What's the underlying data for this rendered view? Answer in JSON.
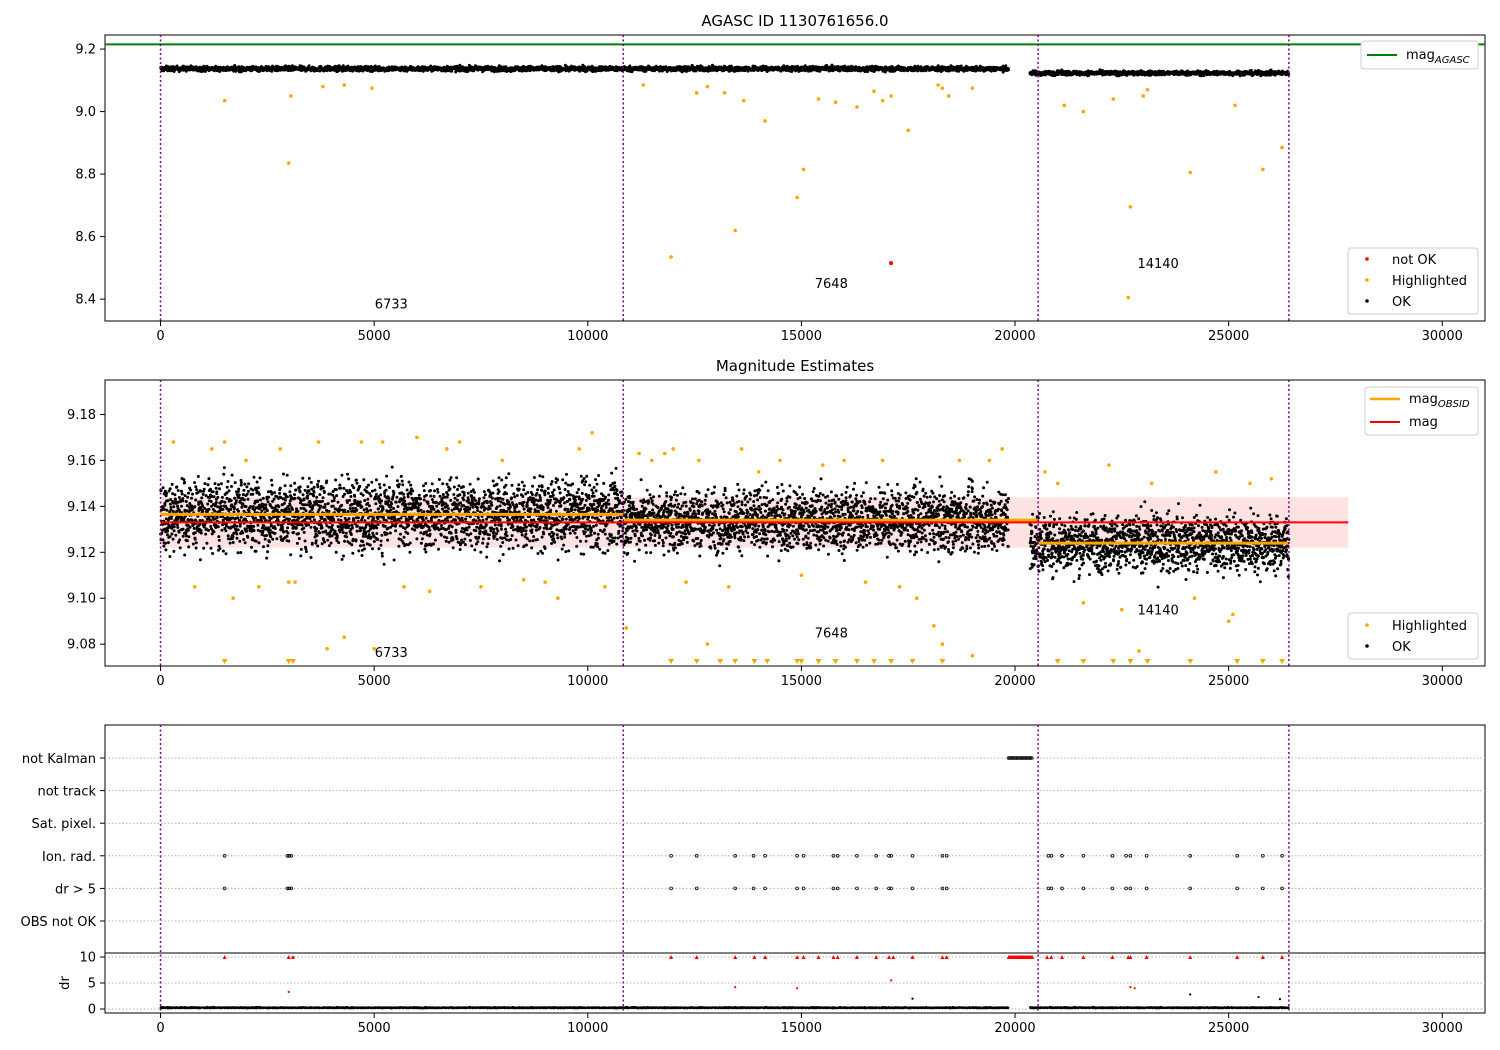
{
  "chart_data": [
    {
      "type": "scatter",
      "title": "AGASC ID 1130761656.0",
      "xlim": [
        -1300,
        31000
      ],
      "ylim": [
        8.33,
        9.245
      ],
      "xticks": [
        0,
        5000,
        10000,
        15000,
        20000,
        25000,
        30000
      ],
      "yticks": [
        8.4,
        8.6,
        8.8,
        9.0,
        9.2
      ],
      "ytick_labels": [
        "8.4",
        "8.6",
        "8.8",
        "9.0",
        "9.2"
      ],
      "obsid_boundaries": [
        0,
        10830,
        20540,
        26410
      ],
      "obsid_labels": [
        {
          "text": "6733",
          "x": 5400,
          "y": 8.37
        },
        {
          "text": "7648",
          "x": 15700,
          "y": 8.435
        },
        {
          "text": "14140",
          "x": 23350,
          "y": 8.5
        }
      ],
      "reference_lines": [
        {
          "name": "mag_AGASC",
          "y": 9.215,
          "x_range": [
            -1300,
            31000
          ],
          "color": "#008000"
        }
      ],
      "series": [
        {
          "name": "not OK",
          "color": "#ff0000",
          "points": [
            [
              17100,
              8.515
            ]
          ]
        },
        {
          "name": "Highlighted",
          "color": "#ffa500",
          "points": [
            [
              1500,
              9.035
            ],
            [
              3000,
              8.835
            ],
            [
              3050,
              9.05
            ],
            [
              3800,
              9.08
            ],
            [
              4300,
              9.085
            ],
            [
              4950,
              9.075
            ],
            [
              11300,
              9.085
            ],
            [
              11950,
              8.535
            ],
            [
              12550,
              9.06
            ],
            [
              12800,
              9.08
            ],
            [
              13200,
              9.06
            ],
            [
              13450,
              8.62
            ],
            [
              13650,
              9.035
            ],
            [
              14150,
              8.97
            ],
            [
              14900,
              8.725
            ],
            [
              15050,
              8.815
            ],
            [
              15400,
              9.04
            ],
            [
              15800,
              9.03
            ],
            [
              16300,
              9.015
            ],
            [
              16700,
              9.065
            ],
            [
              16900,
              9.035
            ],
            [
              17100,
              9.05
            ],
            [
              17500,
              8.94
            ],
            [
              18200,
              9.085
            ],
            [
              18300,
              9.075
            ],
            [
              18450,
              9.05
            ],
            [
              19000,
              9.075
            ],
            [
              21150,
              9.02
            ],
            [
              21600,
              9.0
            ],
            [
              22300,
              9.04
            ],
            [
              22650,
              8.405
            ],
            [
              22700,
              8.695
            ],
            [
              23000,
              9.05
            ],
            [
              23100,
              9.07
            ],
            [
              24100,
              8.805
            ],
            [
              25150,
              9.02
            ],
            [
              25800,
              8.815
            ],
            [
              26250,
              8.885
            ]
          ]
        },
        {
          "name": "OK",
          "color": "#000000",
          "bands": [
            {
              "x_range": [
                0,
                19850
              ],
              "center": 9.137,
              "half_width": 0.028
            },
            {
              "x_range": [
                20350,
                26410
              ],
              "center": 9.123,
              "half_width": 0.025
            }
          ]
        }
      ],
      "legends": [
        {
          "placement": "upper-right",
          "entries": [
            {
              "label": "mag",
              "sub": "AGASC",
              "marker": "line",
              "color": "#008000"
            }
          ]
        },
        {
          "placement": "lower-right",
          "entries": [
            {
              "label": "not OK",
              "marker": "dot",
              "color": "#ff0000"
            },
            {
              "label": "Highlighted",
              "marker": "dot",
              "color": "#ffa500"
            },
            {
              "label": "OK",
              "marker": "dot",
              "color": "#000000"
            }
          ]
        }
      ]
    },
    {
      "type": "scatter",
      "title": "Magnitude Estimates",
      "xlim": [
        -1300,
        31000
      ],
      "ylim": [
        9.0705,
        9.195
      ],
      "xticks": [
        0,
        5000,
        10000,
        15000,
        20000,
        25000,
        30000
      ],
      "yticks": [
        9.08,
        9.1,
        9.12,
        9.14,
        9.16,
        9.18
      ],
      "ytick_labels": [
        "9.08",
        "9.10",
        "9.12",
        "9.14",
        "9.16",
        "9.18"
      ],
      "obsid_boundaries": [
        0,
        10830,
        20540,
        26410
      ],
      "obsid_labels": [
        {
          "text": "6733",
          "x": 5400,
          "y": 9.0745
        },
        {
          "text": "7648",
          "x": 15700,
          "y": 9.083
        },
        {
          "text": "14140",
          "x": 23350,
          "y": 9.093
        }
      ],
      "mag": {
        "value": 9.133,
        "band": [
          9.122,
          9.144
        ],
        "x_range": [
          0,
          27800
        ],
        "color": "#ff0000"
      },
      "mag_obsid": [
        {
          "x_range": [
            0,
            10830
          ],
          "value": 9.1365
        },
        {
          "x_range": [
            10830,
            20540
          ],
          "value": 9.134
        },
        {
          "x_range": [
            20540,
            26410
          ],
          "value": 9.124
        }
      ],
      "series": [
        {
          "name": "Highlighted",
          "color": "#ffa500",
          "points": [
            [
              300,
              9.168
            ],
            [
              800,
              9.105
            ],
            [
              1200,
              9.165
            ],
            [
              1500,
              9.168
            ],
            [
              1700,
              9.1
            ],
            [
              2000,
              9.16
            ],
            [
              2300,
              9.105
            ],
            [
              2800,
              9.165
            ],
            [
              3000,
              9.107
            ],
            [
              3150,
              9.107
            ],
            [
              3700,
              9.168
            ],
            [
              3900,
              9.078
            ],
            [
              4300,
              9.083
            ],
            [
              4700,
              9.168
            ],
            [
              5000,
              9.078
            ],
            [
              5200,
              9.168
            ],
            [
              5700,
              9.105
            ],
            [
              6000,
              9.17
            ],
            [
              6300,
              9.103
            ],
            [
              6700,
              9.165
            ],
            [
              7000,
              9.168
            ],
            [
              7500,
              9.105
            ],
            [
              8000,
              9.16
            ],
            [
              8500,
              9.108
            ],
            [
              9000,
              9.107
            ],
            [
              9300,
              9.1
            ],
            [
              9800,
              9.165
            ],
            [
              10100,
              9.172
            ],
            [
              10400,
              9.105
            ],
            [
              10900,
              9.087
            ],
            [
              11200,
              9.163
            ],
            [
              11500,
              9.16
            ],
            [
              11800,
              9.163
            ],
            [
              12000,
              9.165
            ],
            [
              12300,
              9.107
            ],
            [
              12600,
              9.16
            ],
            [
              12800,
              9.08
            ],
            [
              13300,
              9.105
            ],
            [
              13600,
              9.165
            ],
            [
              14000,
              9.155
            ],
            [
              14500,
              9.16
            ],
            [
              15000,
              9.11
            ],
            [
              15500,
              9.158
            ],
            [
              16000,
              9.16
            ],
            [
              16500,
              9.107
            ],
            [
              16900,
              9.16
            ],
            [
              17300,
              9.105
            ],
            [
              17700,
              9.1
            ],
            [
              18100,
              9.088
            ],
            [
              18300,
              9.08
            ],
            [
              18700,
              9.16
            ],
            [
              19000,
              9.075
            ],
            [
              19400,
              9.16
            ],
            [
              19700,
              9.165
            ],
            [
              20700,
              9.155
            ],
            [
              21000,
              9.15
            ],
            [
              21600,
              9.098
            ],
            [
              22200,
              9.158
            ],
            [
              22500,
              9.095
            ],
            [
              22900,
              9.077
            ],
            [
              23200,
              9.15
            ],
            [
              24200,
              9.1
            ],
            [
              24700,
              9.155
            ],
            [
              25000,
              9.09
            ],
            [
              25100,
              9.093
            ],
            [
              25500,
              9.15
            ],
            [
              26000,
              9.152
            ]
          ]
        },
        {
          "name": "Highlighted (below range)",
          "color": "#ffa500",
          "x": [
            1500,
            3000,
            3100,
            11950,
            12550,
            13100,
            13450,
            13900,
            14200,
            14900,
            15000,
            15400,
            15800,
            16300,
            16700,
            17100,
            17600,
            18300,
            21000,
            21600,
            22300,
            22700,
            23100,
            24100,
            25200,
            25800,
            26250
          ]
        },
        {
          "name": "OK",
          "color": "#000000",
          "bands": [
            {
              "x_range": [
                0,
                10830
              ],
              "center": 9.1365,
              "half_width": 0.03
            },
            {
              "x_range": [
                10830,
                19850
              ],
              "center": 9.134,
              "half_width": 0.026
            },
            {
              "x_range": [
                20350,
                26410
              ],
              "center": 9.124,
              "half_width": 0.024
            }
          ]
        }
      ],
      "legends": [
        {
          "placement": "upper-right",
          "entries": [
            {
              "label": "mag",
              "sub": "OBSID",
              "marker": "line",
              "color": "#ffa500"
            },
            {
              "label": "mag",
              "sub": "",
              "marker": "line",
              "color": "#ff0000"
            }
          ]
        },
        {
          "placement": "lower-right",
          "entries": [
            {
              "label": "Highlighted",
              "marker": "dot",
              "color": "#ffa500"
            },
            {
              "label": "OK",
              "marker": "dot",
              "color": "#000000"
            }
          ]
        }
      ]
    },
    {
      "type": "scatter",
      "title": "",
      "xlim": [
        -1300,
        31000
      ],
      "xticks": [
        0,
        5000,
        10000,
        15000,
        20000,
        25000,
        30000
      ],
      "obsid_boundaries": [
        0,
        10830,
        20540,
        26410
      ],
      "flag_rows": [
        "not Kalman",
        "not track",
        "Sat. pixel.",
        "Ion. rad.",
        "dr > 5",
        "OBS not OK"
      ],
      "flags": {
        "not Kalman": [
          [
            19850,
            20400
          ]
        ],
        "Ion. rad.": [
          1500,
          2970,
          3010,
          3060,
          11950,
          12550,
          13450,
          13880,
          14150,
          14900,
          15050,
          15750,
          15850,
          16300,
          16750,
          17050,
          17100,
          17600,
          18300,
          18400,
          20780,
          20850,
          21100,
          21600,
          22280,
          22600,
          22700,
          23080,
          24100,
          25200,
          25800,
          26250
        ],
        "dr > 5": [
          1500,
          2970,
          3010,
          3060,
          11950,
          12550,
          13450,
          13880,
          14150,
          14900,
          15050,
          15750,
          15850,
          16300,
          16750,
          17050,
          17100,
          17600,
          18300,
          18400,
          20780,
          20850,
          21100,
          21600,
          22280,
          22600,
          22700,
          23080,
          24100,
          25200,
          25800,
          26250
        ]
      },
      "dr_axis": {
        "ylabel": "dr",
        "ylim": [
          -0.3,
          10.5
        ],
        "yticks": [
          0,
          5,
          10
        ],
        "ytick_labels": [
          "0",
          "5",
          "10"
        ],
        "clipped_points_x": [
          1500,
          3000,
          3100,
          11950,
          12550,
          13450,
          13900,
          14150,
          14900,
          15050,
          15400,
          15750,
          15850,
          16300,
          16750,
          17050,
          17150,
          17600,
          18300,
          18400,
          20750,
          20850,
          21100,
          21600,
          22280,
          22650,
          22700,
          23080,
          24100,
          25200,
          25800,
          26250
        ],
        "outliers": [
          [
            3000,
            3.3
          ],
          [
            13450,
            4.2
          ],
          [
            14900,
            4.0
          ],
          [
            17100,
            5.5
          ],
          [
            17600,
            2.0
          ],
          [
            22700,
            4.2
          ],
          [
            22800,
            4.0
          ],
          [
            24100,
            2.8
          ],
          [
            25700,
            2.3
          ],
          [
            26200,
            1.9
          ]
        ],
        "baseline_ranges": [
          [
            0,
            19850
          ],
          [
            20350,
            26410
          ]
        ],
        "baseline_level": 0.25
      }
    }
  ]
}
